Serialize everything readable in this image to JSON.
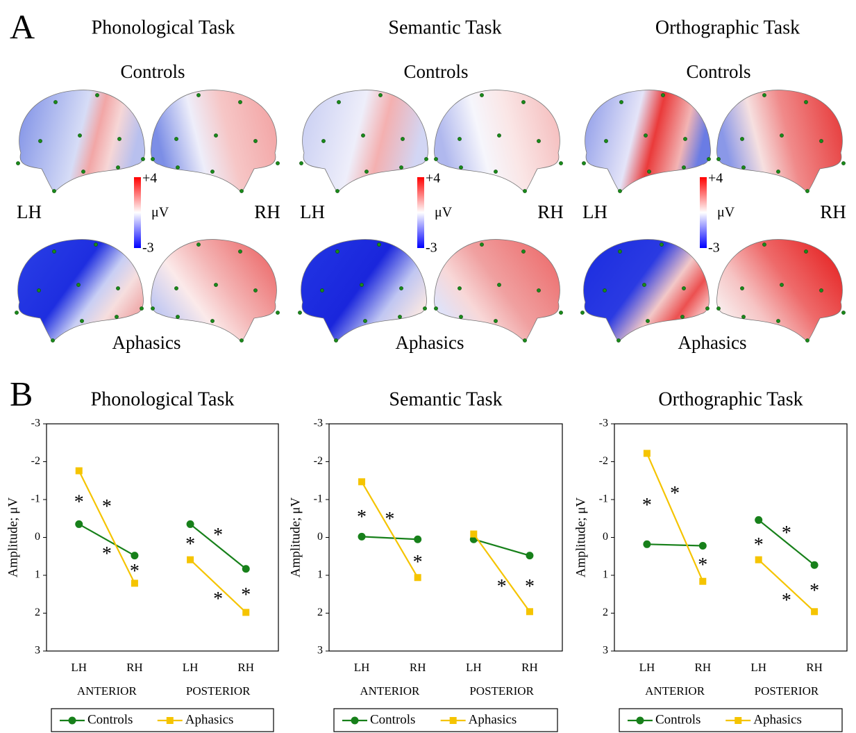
{
  "panel_a": {
    "label": "A",
    "tasks": [
      {
        "title": "Phonological Task",
        "top": "Controls",
        "bottom": "Aphasics",
        "left": "LH",
        "right": "RH",
        "colorbar": {
          "max": "+4",
          "unit": "μV",
          "min": "-3"
        }
      },
      {
        "title": "Semantic Task",
        "top": "Controls",
        "bottom": "Aphasics",
        "left": "LH",
        "right": "RH",
        "colorbar": {
          "max": "+4",
          "unit": "μV",
          "min": "-3"
        }
      },
      {
        "title": "Orthographic Task",
        "top": "Controls",
        "bottom": "Aphasics",
        "left": "LH",
        "right": "RH",
        "colorbar": {
          "max": "+4",
          "unit": "μV",
          "min": "-3"
        }
      }
    ]
  },
  "panel_b": {
    "label": "B"
  },
  "chart_data": [
    {
      "type": "line",
      "title": "Phonological Task",
      "y_label": "Amplitude; μV",
      "categories": [
        "LH",
        "RH",
        null,
        "LH",
        "RH"
      ],
      "group_labels": [
        "ANTERIOR",
        "POSTERIOR"
      ],
      "ylim": [
        3,
        -3
      ],
      "yticks": [
        -3,
        -2,
        -1,
        0,
        1,
        2,
        3
      ],
      "series": [
        {
          "name": "Controls",
          "color": "#17801a",
          "marker": "circle",
          "values": [
            -0.35,
            0.48,
            null,
            -0.35,
            0.83
          ]
        },
        {
          "name": "Aphasics",
          "color": "#f5c400",
          "marker": "square",
          "values": [
            -1.76,
            1.21,
            null,
            0.59,
            1.98
          ]
        }
      ],
      "annotations": [
        {
          "text": "*",
          "x": 0,
          "y": -1.0
        },
        {
          "text": "*",
          "x": 0.5,
          "y": -0.88
        },
        {
          "text": "*",
          "x": 0.5,
          "y": 0.37
        },
        {
          "text": "*",
          "x": 1,
          "y": 0.83
        },
        {
          "text": "*",
          "x": 3,
          "y": 0.11
        },
        {
          "text": "*",
          "x": 3.5,
          "y": -0.13
        },
        {
          "text": "*",
          "x": 3.5,
          "y": 1.56
        },
        {
          "text": "*",
          "x": 4,
          "y": 1.45
        }
      ]
    },
    {
      "type": "line",
      "title": "Semantic Task",
      "y_label": "Amplitude; μV",
      "categories": [
        "LH",
        "RH",
        null,
        "LH",
        "RH"
      ],
      "group_labels": [
        "ANTERIOR",
        "POSTERIOR"
      ],
      "ylim": [
        3,
        -3
      ],
      "yticks": [
        -3,
        -2,
        -1,
        0,
        1,
        2,
        3
      ],
      "series": [
        {
          "name": "Controls",
          "color": "#17801a",
          "marker": "circle",
          "values": [
            -0.02,
            0.05,
            null,
            0.05,
            0.48
          ]
        },
        {
          "name": "Aphasics",
          "color": "#f5c400",
          "marker": "square",
          "values": [
            -1.47,
            1.06,
            null,
            -0.09,
            1.96
          ]
        }
      ],
      "annotations": [
        {
          "text": "*",
          "x": 0,
          "y": -0.6
        },
        {
          "text": "*",
          "x": 0.5,
          "y": -0.55
        },
        {
          "text": "*",
          "x": 1,
          "y": 0.59
        },
        {
          "text": "*",
          "x": 3.5,
          "y": 1.23
        },
        {
          "text": "*",
          "x": 4,
          "y": 1.23
        }
      ]
    },
    {
      "type": "line",
      "title": "Orthographic Task",
      "y_label": "Amplitude; μV",
      "categories": [
        "LH",
        "RH",
        null,
        "LH",
        "RH"
      ],
      "group_labels": [
        "ANTERIOR",
        "POSTERIOR"
      ],
      "ylim": [
        3,
        -3
      ],
      "yticks": [
        -3,
        -2,
        -1,
        0,
        1,
        2,
        3
      ],
      "series": [
        {
          "name": "Controls",
          "color": "#17801a",
          "marker": "circle",
          "values": [
            0.18,
            0.22,
            null,
            -0.46,
            0.73
          ]
        },
        {
          "name": "Aphasics",
          "color": "#f5c400",
          "marker": "square",
          "values": [
            -2.22,
            1.16,
            null,
            0.59,
            1.96
          ]
        }
      ],
      "annotations": [
        {
          "text": "*",
          "x": 0,
          "y": -0.92
        },
        {
          "text": "*",
          "x": 0.5,
          "y": -1.23
        },
        {
          "text": "*",
          "x": 1,
          "y": 0.66
        },
        {
          "text": "*",
          "x": 3,
          "y": 0.13
        },
        {
          "text": "*",
          "x": 3.5,
          "y": -0.18
        },
        {
          "text": "*",
          "x": 3.5,
          "y": 1.6
        },
        {
          "text": "*",
          "x": 4,
          "y": 1.34
        }
      ]
    }
  ]
}
